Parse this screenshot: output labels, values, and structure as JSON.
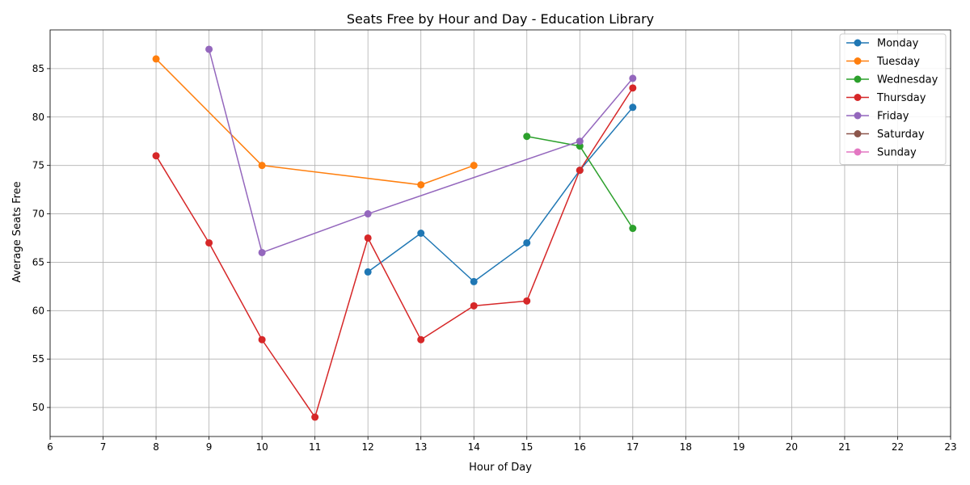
{
  "chart_data": {
    "type": "line",
    "title": "Seats Free by Hour and Day - Education Library",
    "xlabel": "Hour of Day",
    "ylabel": "Average Seats Free",
    "xlim": [
      6,
      23
    ],
    "ylim": [
      47,
      89
    ],
    "xticks": [
      6,
      7,
      8,
      9,
      10,
      11,
      12,
      13,
      14,
      15,
      16,
      17,
      18,
      19,
      20,
      21,
      22,
      23
    ],
    "yticks": [
      50,
      55,
      60,
      65,
      70,
      75,
      80,
      85
    ],
    "grid": true,
    "legend_position": "top-right",
    "series": [
      {
        "name": "Monday",
        "color": "#1f77b4",
        "x": [
          12,
          13,
          14,
          15,
          16,
          17
        ],
        "y": [
          64,
          68,
          63,
          67,
          74.5,
          81
        ]
      },
      {
        "name": "Tuesday",
        "color": "#ff7f0e",
        "x": [
          8,
          10,
          13,
          14
        ],
        "y": [
          86,
          75,
          73,
          75
        ]
      },
      {
        "name": "Wednesday",
        "color": "#2ca02c",
        "x": [
          15,
          16,
          17
        ],
        "y": [
          78,
          77,
          68.5
        ]
      },
      {
        "name": "Thursday",
        "color": "#d62728",
        "x": [
          8,
          9,
          10,
          11,
          12,
          13,
          14,
          15,
          16,
          17
        ],
        "y": [
          76,
          67,
          57,
          49,
          67.5,
          57,
          60.5,
          61,
          74.5,
          83
        ]
      },
      {
        "name": "Friday",
        "color": "#9467bd",
        "x": [
          9,
          10,
          12,
          16,
          17
        ],
        "y": [
          87,
          66,
          70,
          77.5,
          84
        ]
      },
      {
        "name": "Saturday",
        "color": "#8c564b",
        "x": [],
        "y": []
      },
      {
        "name": "Sunday",
        "color": "#e377c2",
        "x": [],
        "y": []
      }
    ]
  }
}
